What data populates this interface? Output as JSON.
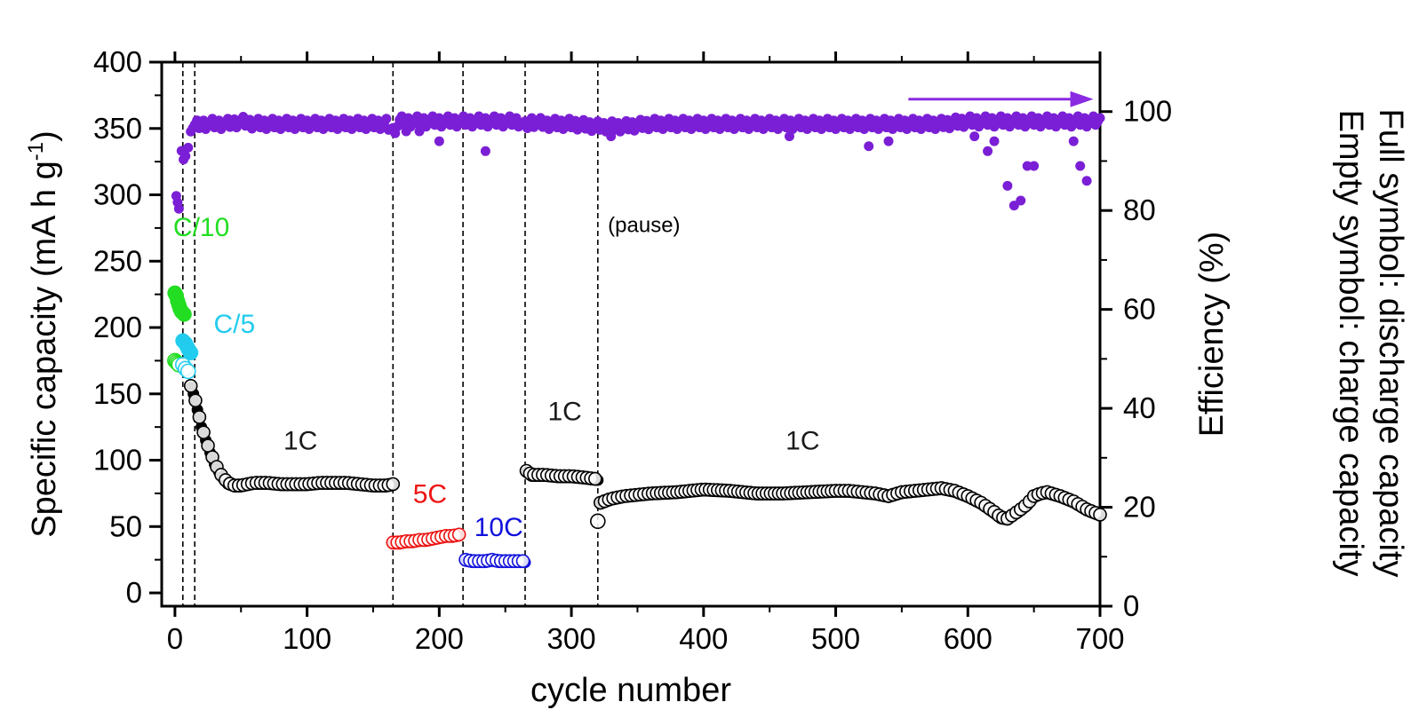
{
  "chart_data": {
    "type": "scatter",
    "xlabel": "cycle number",
    "ylabel_left": "Specific capacity (mA h g",
    "ylabel_left_sup": "-1",
    "ylabel_left_end": ")",
    "ylabel_right": "Efficiency (%)",
    "xlim": [
      -10,
      700
    ],
    "ylim_left": [
      -10,
      400
    ],
    "ylim_right": [
      0,
      110
    ],
    "x_ticks": [
      "0",
      "100",
      "200",
      "300",
      "400",
      "500",
      "600",
      "700"
    ],
    "y_left_ticks": [
      "0",
      "50",
      "100",
      "150",
      "200",
      "250",
      "300",
      "350",
      "400"
    ],
    "y_right_ticks": [
      "0",
      "20",
      "40",
      "60",
      "80",
      "100"
    ],
    "legend_lines": [
      "Full symbol: discharge capacity",
      "Empty symbol: charge capacity"
    ],
    "dividers": [
      6,
      15,
      165,
      218,
      265,
      320
    ],
    "rate_labels": [
      {
        "text": "C/10",
        "color": "#22dd22",
        "x": 20,
        "y": 269
      },
      {
        "text": "C/5",
        "color": "#22ccee",
        "x": 45,
        "y": 196
      },
      {
        "text": "1C",
        "color": "#1a1a1a",
        "x": 95,
        "y": 108
      },
      {
        "text": "5C",
        "color": "#ee1111",
        "x": 193,
        "y": 68
      },
      {
        "text": "10C",
        "color": "#1111dd",
        "x": 245,
        "y": 43
      },
      {
        "text": "1C",
        "color": "#1a1a1a",
        "x": 295,
        "y": 130
      },
      {
        "text": "1C",
        "color": "#1a1a1a",
        "x": 475,
        "y": 108
      }
    ],
    "pause_label": {
      "text": "(pause)",
      "x": 355,
      "y": 272
    },
    "arrow": {
      "x_start": 555,
      "x_end": 695,
      "efficiency": 102.5,
      "color": "#8a2be2"
    },
    "series": [
      {
        "color": "#22dd22",
        "style": "discharge",
        "x": [
          0,
          1,
          2,
          3,
          4,
          5,
          6,
          7
        ],
        "y": [
          226,
          224,
          220,
          217,
          214,
          212,
          211,
          210
        ]
      },
      {
        "color": "#22dd22",
        "style": "charge",
        "x": [
          0,
          1,
          2,
          3
        ],
        "y": [
          175,
          174,
          173,
          172
        ]
      },
      {
        "color": "#22ccee",
        "style": "discharge",
        "x": [
          6,
          7,
          8,
          9,
          10,
          11,
          12
        ],
        "y": [
          190,
          189,
          188,
          186,
          184,
          182,
          181
        ]
      },
      {
        "color": "#22ccee",
        "style": "charge",
        "x": [
          6,
          8,
          10
        ],
        "y": [
          172,
          169,
          167
        ]
      },
      {
        "color": "#000000",
        "style": "both",
        "segments": [
          {
            "x": [
              12,
              14,
              17,
              20,
              25,
              30,
              35,
              40,
              45,
              50,
              60,
              70,
              80,
              90,
              100,
              110,
              120,
              130,
              140,
              150,
              160,
              165
            ],
            "y": [
              155,
              150,
              138,
              125,
              110,
              97,
              88,
              82,
              80,
              80,
              82,
              82,
              81,
              81,
              81,
              82,
              82,
              82,
              81,
              80,
              80,
              81
            ]
          },
          {
            "x": [
              266,
              270,
              280,
              290,
              300,
              310,
              318,
              320
            ],
            "y": [
              91,
              88,
              88,
              87,
              87,
              86,
              85,
              85
            ]
          },
          {
            "x": [
              322,
              330,
              340,
              350,
              360,
              380,
              400,
              420,
              440,
              460,
              480,
              500,
              510,
              520,
              530,
              540,
              550,
              560,
              570,
              580,
              590,
              600,
              610,
              620,
              625,
              630,
              640,
              645,
              650,
              655,
              660,
              670,
              680,
              690,
              700
            ],
            "y": [
              67,
              70,
              72,
              73,
              74,
              75,
              77,
              76,
              74,
              74,
              75,
              76,
              76,
              75,
              74,
              72,
              75,
              76,
              77,
              78,
              76,
              72,
              67,
              60,
              56,
              55,
              62,
              66,
              72,
              74,
              75,
              72,
              68,
              62,
              58
            ]
          }
        ]
      },
      {
        "color": "#000000",
        "style": "charge",
        "x": [
          320
        ],
        "y": [
          54
        ]
      },
      {
        "color": "#ee1111",
        "style": "both",
        "x": [
          165,
          170,
          175,
          180,
          185,
          190,
          195,
          200,
          205,
          210,
          215
        ],
        "y": [
          37,
          37,
          38,
          38,
          39,
          39,
          40,
          41,
          42,
          42,
          43
        ]
      },
      {
        "color": "#1111dd",
        "style": "both",
        "x": [
          220,
          225,
          230,
          235,
          240,
          245,
          250,
          255,
          260,
          265
        ],
        "y": [
          24,
          23,
          23,
          23,
          24,
          23,
          23,
          23,
          23,
          23
        ]
      },
      {
        "color": "#7b1fd6",
        "style": "efficiency",
        "x": [
          1,
          2,
          3,
          5,
          8,
          10,
          12,
          15,
          20,
          30,
          40,
          50,
          60,
          80,
          100,
          120,
          140,
          160,
          165,
          170,
          180,
          190,
          200,
          210,
          215,
          220,
          230,
          240,
          250,
          260,
          265,
          270,
          280,
          300,
          320,
          340,
          360,
          380,
          400,
          420,
          450,
          480,
          500,
          520,
          540,
          560,
          580,
          600,
          610,
          620,
          630,
          640,
          650,
          660,
          670,
          680,
          690,
          700
        ],
        "y": [
          84,
          82,
          80,
          91,
          91,
          92,
          97,
          97,
          97.5,
          97.5,
          97.5,
          98,
          97.5,
          97.5,
          97.5,
          97.5,
          97.5,
          97.5,
          96,
          98,
          98,
          98,
          98,
          98,
          98,
          98,
          98,
          98,
          98,
          98,
          97,
          98,
          97.5,
          97.5,
          97,
          97,
          97.5,
          97.5,
          97.5,
          97.5,
          97.5,
          97.5,
          97.5,
          97.5,
          97.5,
          97.5,
          97.5,
          98,
          98,
          98,
          98,
          98,
          98,
          98,
          98,
          98,
          98,
          98
        ]
      },
      {
        "color": "#7b1fd6",
        "style": "efficiency-outliers",
        "x": [
          175,
          185,
          200,
          235,
          330,
          465,
          525,
          540,
          605,
          615,
          620,
          630,
          635,
          640,
          645,
          650,
          680,
          685,
          690
        ],
        "y": [
          96,
          96,
          94,
          92,
          95,
          95,
          93,
          94,
          95,
          92,
          94,
          85,
          81,
          82,
          89,
          89,
          94,
          89,
          86
        ]
      }
    ]
  }
}
